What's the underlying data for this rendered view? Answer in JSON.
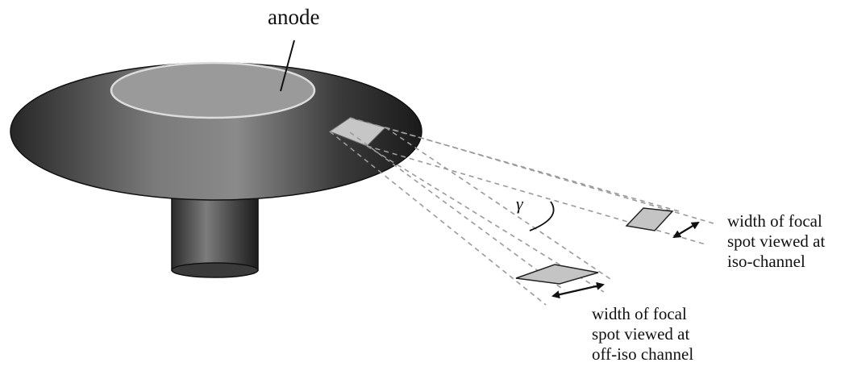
{
  "labels": {
    "anode": "anode",
    "gamma": "γ",
    "iso_channel": {
      "line1": "width of focal",
      "line2": "spot viewed at",
      "line3": "iso-channel"
    },
    "off_iso_channel": {
      "line1": "width of focal",
      "line2": "spot viewed at",
      "line3": "off-iso channel"
    }
  },
  "colors": {
    "disk_dark": "#1f1f1f",
    "disk_light": "#8a8a8a",
    "anode_fill": "#9a9a9a",
    "anode_outline": "#d6d6d6",
    "focal_spot_fill": "#c4c4c4",
    "ray_dash": "#9a9a9a"
  }
}
